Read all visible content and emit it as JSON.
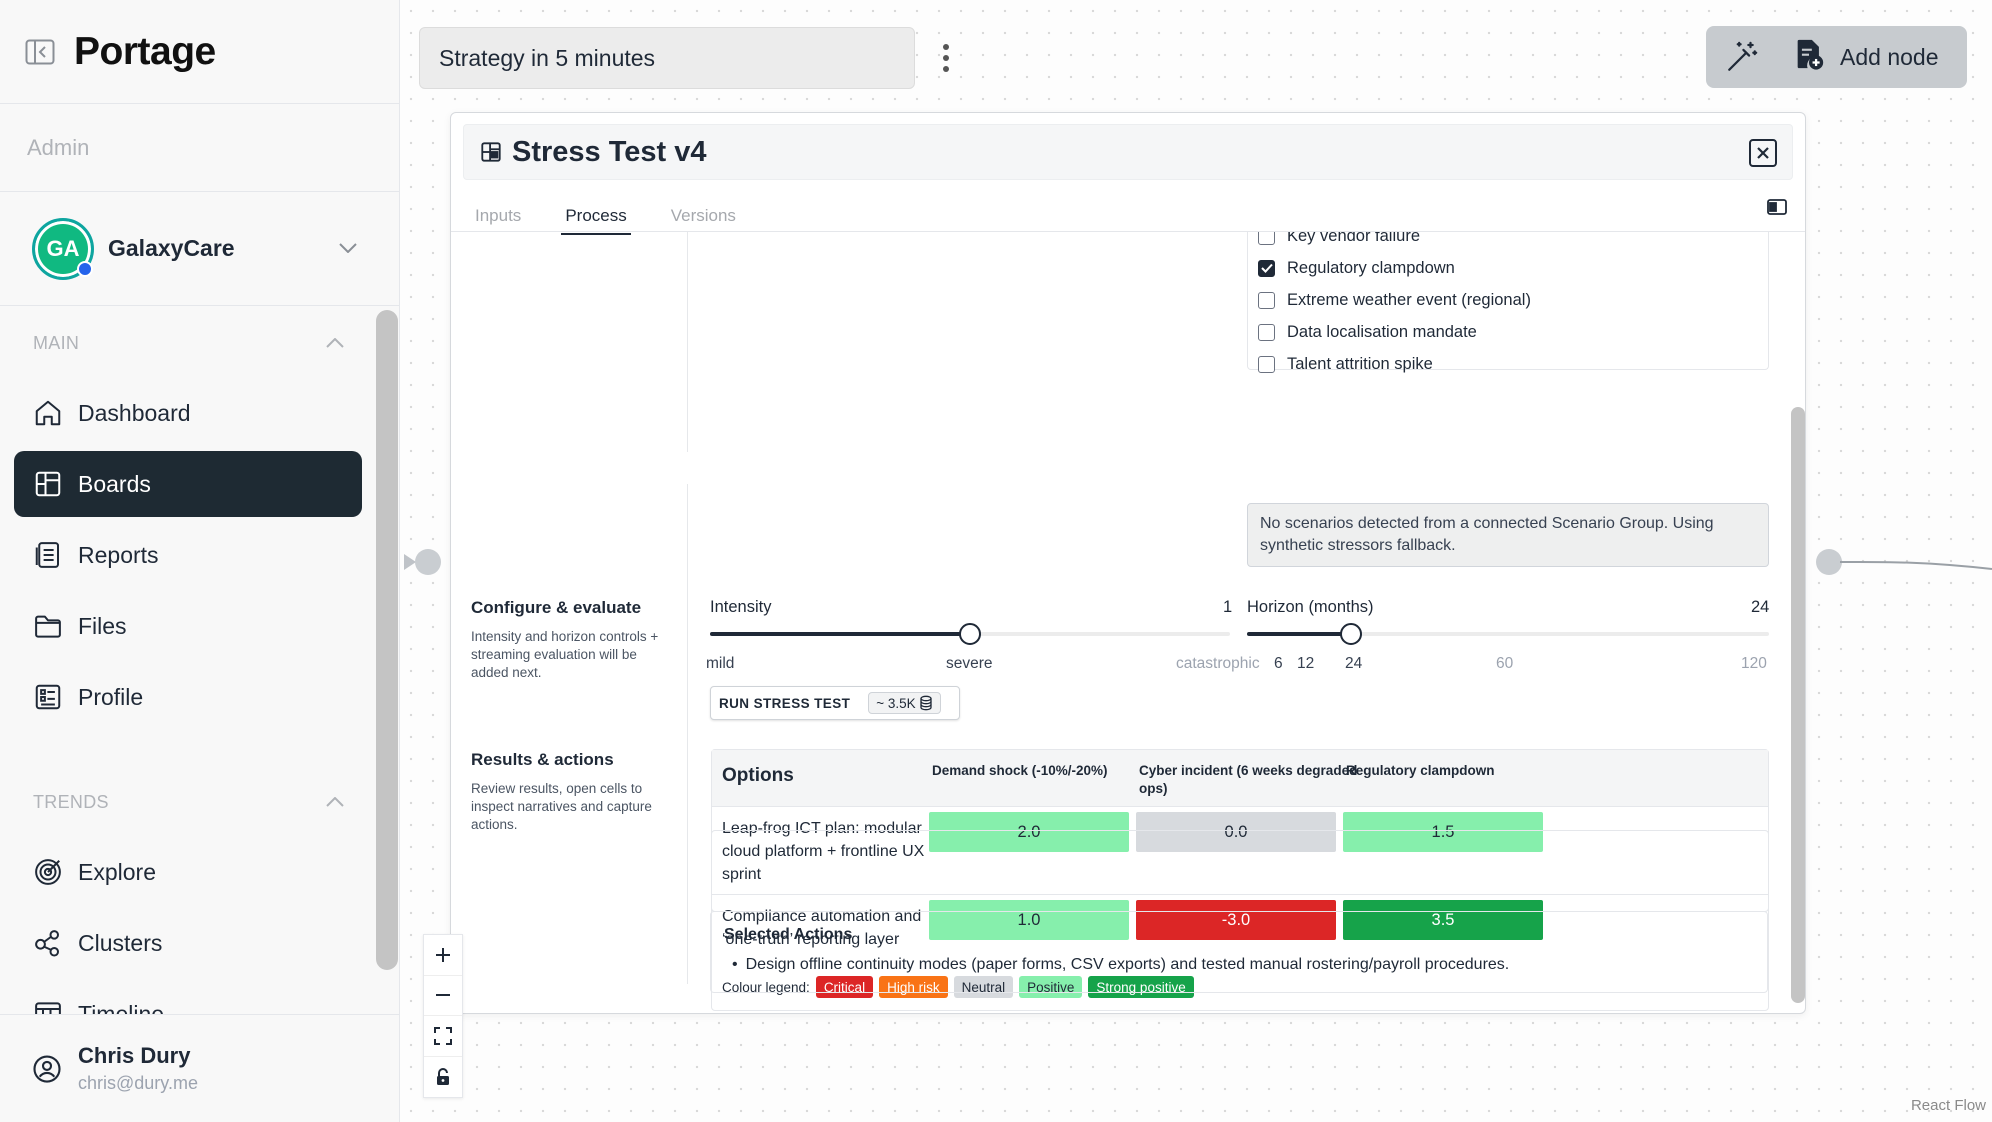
{
  "app": {
    "logo": "Portage",
    "role": "Admin",
    "org": {
      "initials": "GA",
      "name": "GalaxyCare"
    }
  },
  "sidebar": {
    "main_label": "MAIN",
    "main_items": [
      {
        "label": "Dashboard",
        "icon": "home-icon",
        "active": false
      },
      {
        "label": "Boards",
        "icon": "boards-icon",
        "active": true
      },
      {
        "label": "Reports",
        "icon": "reports-icon",
        "active": false
      },
      {
        "label": "Files",
        "icon": "folder-icon",
        "active": false
      },
      {
        "label": "Profile",
        "icon": "profile-icon",
        "active": false
      }
    ],
    "trends_label": "TRENDS",
    "trends_items": [
      {
        "label": "Explore",
        "icon": "explore-icon"
      },
      {
        "label": "Clusters",
        "icon": "clusters-icon"
      },
      {
        "label": "Timeline",
        "icon": "timeline-icon"
      }
    ],
    "user": {
      "name": "Chris Dury",
      "email": "chris@dury.me"
    }
  },
  "toolbar": {
    "board_title": "Strategy in 5 minutes",
    "add_node_label": "Add node"
  },
  "node": {
    "title": "Stress Test v4",
    "tabs": [
      {
        "label": "Inputs",
        "active": false
      },
      {
        "label": "Process",
        "active": true
      },
      {
        "label": "Versions",
        "active": false
      }
    ],
    "stressors": [
      {
        "label": "Key vendor failure",
        "checked": false
      },
      {
        "label": "Regulatory clampdown",
        "checked": true
      },
      {
        "label": "Extreme weather event (regional)",
        "checked": false
      },
      {
        "label": "Data localisation mandate",
        "checked": false
      },
      {
        "label": "Talent attrition spike",
        "checked": false
      }
    ],
    "notice": "No scenarios detected from a connected Scenario Group. Using synthetic stressors fallback.",
    "configure": {
      "title": "Configure & evaluate",
      "description": "Intensity and horizon controls + streaming evaluation will be added next.",
      "intensity": {
        "label": "Intensity",
        "value": "1",
        "fraction": 0.5,
        "ticks": [
          "mild",
          "severe",
          "catastrophic"
        ]
      },
      "horizon": {
        "label": "Horizon (months)",
        "value": "24",
        "fraction": 0.2,
        "ticks": [
          "6",
          "12",
          "24",
          "60",
          "120"
        ]
      },
      "run_label": "RUN STRESS TEST",
      "cost": "~ 3.5K"
    },
    "results": {
      "title": "Results & actions",
      "description": "Review results, open cells to inspect narratives and capture actions.",
      "options_header": "Options",
      "columns": [
        "Demand shock (-10%/-20%)",
        "Cyber incident (6 weeks degraded ops)",
        "Regulatory clampdown"
      ],
      "rows": [
        {
          "label": "Leap-frog ICT plan: modular cloud platform + frontline UX sprint",
          "values": [
            "2.0",
            "0.0",
            "1.5"
          ],
          "levels": [
            "positive",
            "neutral",
            "positive"
          ]
        },
        {
          "label": "Compliance automation and ‘one-truth’ reporting layer",
          "values": [
            "1.0",
            "-3.0",
            "3.5"
          ],
          "levels": [
            "positive",
            "critical",
            "strong"
          ]
        }
      ],
      "legend_label": "Colour legend:",
      "legend": [
        {
          "label": "Critical",
          "bg": "#dc2626",
          "fg": "#ffffff"
        },
        {
          "label": "High risk",
          "bg": "#f97316",
          "fg": "#ffffff"
        },
        {
          "label": "Neutral",
          "bg": "#d7dade",
          "fg": "#1f2937"
        },
        {
          "label": "Positive",
          "bg": "#86efac",
          "fg": "#1f2937"
        },
        {
          "label": "Strong positive",
          "bg": "#16a34a",
          "fg": "#ffffff"
        }
      ]
    },
    "selected_actions": {
      "title": "Selected Actions",
      "items": [
        "Design offline continuity modes (paper forms, CSV exports) and tested manual rostering/payroll procedures."
      ]
    }
  },
  "canvas": {
    "attribution": "React Flow"
  },
  "colors": {
    "critical": "#dc2626",
    "neutral": "#d7dade",
    "positive": "#86efac",
    "strong": "#16a34a",
    "active_nav": "#1e2a33"
  }
}
